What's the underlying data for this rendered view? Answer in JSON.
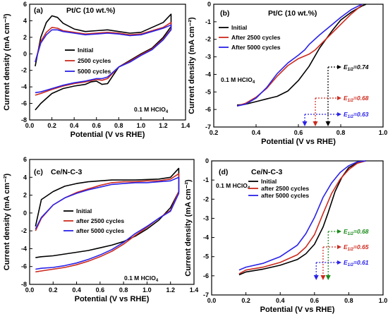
{
  "chart_data": [
    {
      "type": "line",
      "panel": "(a)",
      "title": "Pt/C (10 wt.%)",
      "xlabel": "Potential (V vs RHE)",
      "ylabel": "Current density (mA cm⁻²)",
      "xlim": [
        0.0,
        1.4
      ],
      "ylim": [
        -8,
        6
      ],
      "xticks": [
        0.0,
        0.2,
        0.4,
        0.6,
        0.8,
        1.0,
        1.2,
        1.4
      ],
      "yticks": [
        -8,
        -6,
        -4,
        -2,
        0,
        2,
        4,
        6
      ],
      "annotation": "0.1 M HClO",
      "annotation_sub": "4",
      "legend_position": "center",
      "series": [
        {
          "name": "Initial",
          "color": "#000000",
          "x": [
            0.05,
            0.1,
            0.15,
            0.2,
            0.25,
            0.3,
            0.4,
            0.5,
            0.6,
            0.7,
            0.8,
            0.9,
            1.0,
            1.1,
            1.2,
            1.27,
            1.27,
            1.2,
            1.1,
            1.0,
            0.9,
            0.8,
            0.75,
            0.7,
            0.65,
            0.6,
            0.55,
            0.5,
            0.4,
            0.3,
            0.2,
            0.15,
            0.1,
            0.05
          ],
          "y": [
            -1.5,
            2.0,
            3.8,
            4.6,
            4.4,
            3.7,
            3.0,
            2.7,
            2.8,
            2.9,
            2.7,
            2.5,
            2.6,
            3.2,
            3.8,
            4.8,
            3.3,
            2.0,
            0.7,
            0.0,
            -0.8,
            -1.6,
            -2.6,
            -3.6,
            -3.7,
            -3.3,
            -3.4,
            -3.7,
            -3.9,
            -4.2,
            -4.8,
            -5.4,
            -6.0,
            -6.8
          ]
        },
        {
          "name": "2500 cycles",
          "color": "#cc2a1e",
          "x": [
            0.05,
            0.1,
            0.15,
            0.2,
            0.25,
            0.3,
            0.4,
            0.5,
            0.6,
            0.7,
            0.8,
            0.9,
            1.0,
            1.1,
            1.2,
            1.27,
            1.27,
            1.2,
            1.1,
            1.0,
            0.9,
            0.8,
            0.75,
            0.7,
            0.65,
            0.6,
            0.5,
            0.4,
            0.3,
            0.2,
            0.1,
            0.05
          ],
          "y": [
            -1.0,
            1.5,
            2.6,
            3.2,
            3.1,
            2.8,
            2.6,
            2.4,
            2.5,
            2.6,
            2.5,
            2.3,
            2.4,
            2.8,
            3.2,
            3.8,
            3.0,
            1.8,
            0.6,
            -0.1,
            -0.9,
            -1.6,
            -2.3,
            -3.0,
            -3.2,
            -3.1,
            -3.4,
            -3.6,
            -3.9,
            -4.3,
            -4.8,
            -5.0
          ]
        },
        {
          "name": "5000 cycles",
          "color": "#2a22e8",
          "x": [
            0.05,
            0.1,
            0.15,
            0.2,
            0.25,
            0.3,
            0.4,
            0.5,
            0.6,
            0.7,
            0.8,
            0.9,
            1.0,
            1.1,
            1.2,
            1.27,
            1.27,
            1.2,
            1.1,
            1.0,
            0.9,
            0.8,
            0.75,
            0.7,
            0.65,
            0.6,
            0.5,
            0.4,
            0.3,
            0.2,
            0.1,
            0.05
          ],
          "y": [
            -1.0,
            1.3,
            2.3,
            2.9,
            2.9,
            2.7,
            2.5,
            2.3,
            2.4,
            2.5,
            2.4,
            2.2,
            2.3,
            2.7,
            3.1,
            3.5,
            2.9,
            1.7,
            0.5,
            -0.2,
            -1.0,
            -1.6,
            -2.2,
            -2.8,
            -3.0,
            -3.0,
            -3.3,
            -3.5,
            -3.8,
            -4.2,
            -4.6,
            -4.7
          ]
        }
      ]
    },
    {
      "type": "line",
      "panel": "(b)",
      "title": "Pt/C (10 wt.%)",
      "xlabel": "Potential (V vs RHE)",
      "ylabel": "Current density (mA cm⁻²)",
      "xlim": [
        0.2,
        1.0
      ],
      "ylim": [
        -7,
        0
      ],
      "xticks": [
        0.2,
        0.4,
        0.6,
        0.8,
        1.0
      ],
      "yticks": [
        -7,
        -6,
        -5,
        -4,
        -3,
        -2,
        -1,
        0
      ],
      "annotation": "0.1 M HClO",
      "annotation_sub": "4",
      "legend_position": "top-left",
      "series": [
        {
          "name": "Initial",
          "color": "#000000",
          "x": [
            0.31,
            0.35,
            0.4,
            0.45,
            0.5,
            0.55,
            0.6,
            0.65,
            0.7,
            0.73,
            0.76,
            0.8,
            0.85,
            0.9,
            0.92
          ],
          "y": [
            -5.75,
            -5.7,
            -5.55,
            -5.4,
            -5.25,
            -4.95,
            -4.35,
            -3.55,
            -2.5,
            -2.0,
            -1.5,
            -0.9,
            -0.45,
            -0.1,
            0.0
          ]
        },
        {
          "name": "After 2500 cycles",
          "color": "#cc2a1e",
          "x": [
            0.31,
            0.35,
            0.4,
            0.45,
            0.5,
            0.55,
            0.6,
            0.65,
            0.68,
            0.7,
            0.75,
            0.8,
            0.85,
            0.9
          ],
          "y": [
            -5.8,
            -5.65,
            -5.3,
            -4.8,
            -4.1,
            -3.5,
            -3.1,
            -2.85,
            -2.6,
            -2.35,
            -1.75,
            -1.15,
            -0.55,
            -0.05
          ]
        },
        {
          "name": "After 5000 cycles",
          "color": "#2a22e8",
          "x": [
            0.31,
            0.35,
            0.4,
            0.45,
            0.5,
            0.55,
            0.6,
            0.63,
            0.65,
            0.7,
            0.75,
            0.8,
            0.85,
            0.9
          ],
          "y": [
            -5.8,
            -5.7,
            -5.35,
            -4.75,
            -3.95,
            -3.35,
            -2.9,
            -2.6,
            -2.3,
            -1.75,
            -1.25,
            -0.75,
            -0.3,
            0.0
          ]
        }
      ],
      "half_wave": [
        {
          "label": "E",
          "sub": "1/2",
          "value": "=0.74",
          "color": "#000000",
          "x": 0.74
        },
        {
          "label": "E",
          "sub": "1/2",
          "value": "=0.68",
          "color": "#cc2a1e",
          "x": 0.68
        },
        {
          "label": "E",
          "sub": "1/2",
          "value": "=0.63",
          "color": "#2a22e8",
          "x": 0.63
        }
      ]
    },
    {
      "type": "line",
      "panel": "(c)",
      "title": "Ce/N-C-3",
      "xlabel": "Potential (V vs RHE)",
      "ylabel": "Current density (mA cm⁻²)",
      "xlim": [
        0.0,
        1.4
      ],
      "ylim": [
        -8,
        6
      ],
      "xticks": [
        0.0,
        0.2,
        0.4,
        0.6,
        0.8,
        1.0,
        1.2,
        1.4
      ],
      "yticks": [
        -8,
        -6,
        -4,
        -2,
        0,
        2,
        4,
        6
      ],
      "annotation": "0.1 M HClO",
      "annotation_sub": "4",
      "legend_position": "center",
      "series": [
        {
          "name": "Initial",
          "color": "#000000",
          "x": [
            0.05,
            0.1,
            0.2,
            0.3,
            0.4,
            0.5,
            0.6,
            0.7,
            0.8,
            0.9,
            1.0,
            1.1,
            1.2,
            1.27,
            1.27,
            1.2,
            1.1,
            1.0,
            0.9,
            0.8,
            0.7,
            0.6,
            0.5,
            0.4,
            0.3,
            0.2,
            0.1,
            0.05
          ],
          "y": [
            -1.5,
            1.5,
            2.4,
            3.0,
            3.3,
            3.5,
            3.6,
            3.7,
            3.7,
            3.7,
            3.75,
            3.8,
            4.0,
            5.0,
            2.4,
            0.6,
            -0.8,
            -1.8,
            -2.6,
            -3.2,
            -3.6,
            -3.9,
            -4.2,
            -4.4,
            -4.6,
            -4.8,
            -4.9,
            -5.0
          ]
        },
        {
          "name": "after 2500 cycles",
          "color": "#cc2a1e",
          "x": [
            0.05,
            0.1,
            0.2,
            0.3,
            0.4,
            0.5,
            0.6,
            0.7,
            0.8,
            0.9,
            1.0,
            1.1,
            1.2,
            1.27,
            1.27,
            1.2,
            1.1,
            1.0,
            0.9,
            0.8,
            0.7,
            0.6,
            0.5,
            0.4,
            0.3,
            0.2,
            0.1,
            0.05
          ],
          "y": [
            -2.0,
            -0.6,
            0.9,
            1.7,
            2.3,
            2.7,
            3.1,
            3.4,
            3.5,
            3.5,
            3.6,
            3.6,
            3.8,
            4.4,
            2.4,
            0.3,
            -0.6,
            -1.6,
            -2.5,
            -3.5,
            -4.3,
            -4.9,
            -5.4,
            -5.8,
            -6.1,
            -6.3,
            -6.5,
            -6.6
          ]
        },
        {
          "name": "after 5000 cycles",
          "color": "#2a22e8",
          "x": [
            0.05,
            0.1,
            0.2,
            0.3,
            0.4,
            0.5,
            0.6,
            0.7,
            0.8,
            0.9,
            1.0,
            1.1,
            1.2,
            1.27,
            1.27,
            1.2,
            1.1,
            1.0,
            0.9,
            0.8,
            0.7,
            0.6,
            0.5,
            0.4,
            0.3,
            0.2,
            0.1,
            0.05
          ],
          "y": [
            -1.8,
            -0.5,
            0.9,
            1.7,
            2.2,
            2.6,
            2.9,
            3.2,
            3.3,
            3.4,
            3.4,
            3.5,
            3.6,
            4.0,
            2.2,
            0.2,
            -0.6,
            -1.5,
            -2.3,
            -3.3,
            -4.1,
            -4.7,
            -5.2,
            -5.6,
            -5.9,
            -6.1,
            -6.2,
            -6.3
          ]
        }
      ]
    },
    {
      "type": "line",
      "panel": "(d)",
      "title": "Ce/N-C-3",
      "xlabel": "Potential (V vs RHE)",
      "ylabel": "Current density (mA cm⁻²)",
      "xlim": [
        0.0,
        1.0
      ],
      "ylim": [
        -7,
        0
      ],
      "xticks": [
        0.0,
        0.2,
        0.4,
        0.6,
        0.8,
        1.0
      ],
      "yticks": [
        -7,
        -6,
        -5,
        -4,
        -3,
        -2,
        -1,
        0
      ],
      "annotation": "0.1 M HClO",
      "annotation_sub": "4",
      "legend_position": "top-left",
      "series": [
        {
          "name": "Initial",
          "color": "#000000",
          "x": [
            0.16,
            0.2,
            0.3,
            0.4,
            0.5,
            0.55,
            0.6,
            0.65,
            0.68,
            0.72,
            0.76,
            0.8,
            0.85,
            0.9
          ],
          "y": [
            -5.95,
            -5.8,
            -5.65,
            -5.45,
            -5.15,
            -4.85,
            -4.35,
            -3.45,
            -2.7,
            -1.6,
            -0.85,
            -0.35,
            -0.1,
            0.0
          ]
        },
        {
          "name": "after 2500 cycles",
          "color": "#cc2a1e",
          "x": [
            0.16,
            0.2,
            0.3,
            0.4,
            0.5,
            0.55,
            0.6,
            0.65,
            0.7,
            0.75,
            0.8,
            0.85,
            0.9
          ],
          "y": [
            -5.9,
            -5.7,
            -5.55,
            -5.3,
            -4.9,
            -4.5,
            -3.85,
            -2.75,
            -1.7,
            -0.95,
            -0.45,
            -0.12,
            0.0
          ]
        },
        {
          "name": "after 5000 cycles",
          "color": "#2a22e8",
          "x": [
            0.16,
            0.2,
            0.3,
            0.4,
            0.5,
            0.55,
            0.6,
            0.61,
            0.65,
            0.7,
            0.75,
            0.8,
            0.85,
            0.9
          ],
          "y": [
            -5.7,
            -5.55,
            -5.35,
            -5.0,
            -4.4,
            -3.8,
            -2.95,
            -2.75,
            -1.9,
            -1.15,
            -0.6,
            -0.25,
            -0.05,
            0.0
          ]
        }
      ],
      "half_wave": [
        {
          "label": "E",
          "sub": "1/2",
          "value": "=0.68",
          "color": "#1a8a1a",
          "x": 0.68
        },
        {
          "label": "E",
          "sub": "1/2",
          "value": "=0.65",
          "color": "#cc2a1e",
          "x": 0.65
        },
        {
          "label": "E",
          "sub": "1/2",
          "value": "=0.61",
          "color": "#2a22e8",
          "x": 0.61
        }
      ]
    }
  ]
}
